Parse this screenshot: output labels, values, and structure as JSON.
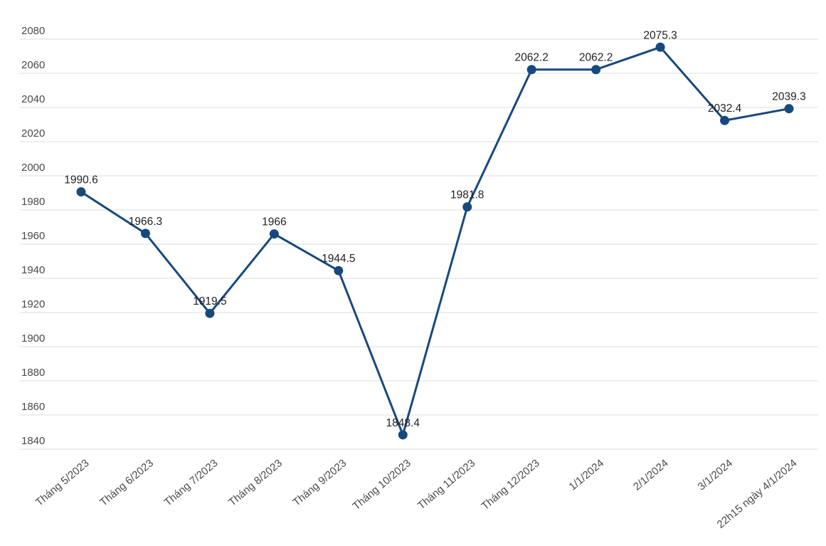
{
  "chart_data": {
    "type": "line",
    "title": "",
    "xlabel": "",
    "ylabel": "",
    "categories": [
      "Tháng 5/2023",
      "Tháng 6/2023",
      "Tháng 7/2023",
      "Tháng 8/2023",
      "Tháng 9/2023",
      "Tháng 10/2023",
      "Tháng 11/2023",
      "Tháng 12/2023",
      "1/1/2024",
      "2/1/2024",
      "3/1/2024",
      "22h15 ngày 4/1/2024"
    ],
    "values": [
      1990.6,
      1966.3,
      1919.5,
      1966,
      1944.5,
      1848.4,
      1981.8,
      2062.2,
      2062.2,
      2075.3,
      2032.4,
      2039.3
    ],
    "point_labels": [
      "1990.6",
      "1966.3",
      "1919.5",
      "1966",
      "1944.5",
      "1848.4",
      "1981.8",
      "2062.2",
      "2062.2",
      "2075.3",
      "2032.4",
      "2039.3"
    ],
    "yticks": [
      1840,
      1860,
      1880,
      1900,
      1920,
      1940,
      1960,
      1980,
      2000,
      2020,
      2040,
      2060,
      2080
    ],
    "ylim": [
      1840,
      2080
    ],
    "ytick_step": 20,
    "grid": true,
    "legend": false,
    "x_label_rotation_deg": -40,
    "colors": {
      "line": "#17497d",
      "marker": "#17497d",
      "grid": "#dcdcdc",
      "axis_text": "#4a4a4a",
      "data_label": "#222222",
      "background": "#ffffff"
    }
  }
}
